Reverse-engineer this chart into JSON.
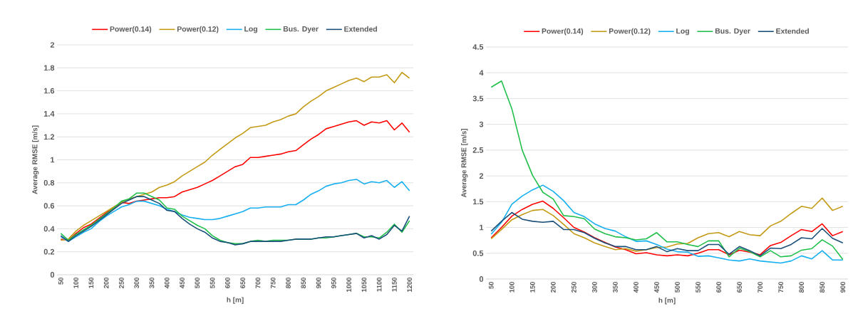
{
  "chart_data": [
    {
      "type": "line",
      "xlabel": "h [m]",
      "ylabel": "Average RMSE [m/s]",
      "x": [
        50,
        75,
        100,
        125,
        150,
        175,
        200,
        225,
        250,
        275,
        300,
        325,
        350,
        375,
        400,
        425,
        450,
        475,
        500,
        525,
        550,
        575,
        600,
        625,
        650,
        675,
        700,
        725,
        750,
        775,
        800,
        825,
        850,
        875,
        900,
        925,
        950,
        975,
        1000,
        1025,
        1050,
        1075,
        1100,
        1125,
        1150,
        1175,
        1200
      ],
      "xlim": [
        37.5,
        1212.5
      ],
      "xticks": [
        50,
        100,
        150,
        200,
        250,
        300,
        350,
        400,
        450,
        500,
        550,
        600,
        650,
        700,
        750,
        800,
        850,
        900,
        950,
        1000,
        1050,
        1100,
        1150,
        1200
      ],
      "ylim": [
        0,
        2
      ],
      "yticks": [
        0,
        0.2,
        0.4,
        0.6,
        0.8,
        1,
        1.2,
        1.4,
        1.6,
        1.8,
        2
      ],
      "grid": "y",
      "legend": "top",
      "series": [
        {
          "name": "Power(0.14)",
          "color": "#ff0000",
          "values": [
            0.31,
            0.3,
            0.36,
            0.41,
            0.44,
            0.49,
            0.54,
            0.58,
            0.63,
            0.62,
            0.64,
            0.65,
            0.66,
            0.67,
            0.67,
            0.68,
            0.72,
            0.74,
            0.76,
            0.79,
            0.82,
            0.86,
            0.9,
            0.94,
            0.96,
            1.02,
            1.02,
            1.03,
            1.04,
            1.05,
            1.07,
            1.08,
            1.13,
            1.18,
            1.22,
            1.27,
            1.29,
            1.31,
            1.33,
            1.34,
            1.3,
            1.33,
            1.32,
            1.34,
            1.26,
            1.32,
            1.24
          ]
        },
        {
          "name": "Power(0.12)",
          "color": "#c49a14",
          "values": [
            0.3,
            0.31,
            0.38,
            0.43,
            0.47,
            0.51,
            0.55,
            0.59,
            0.63,
            0.66,
            0.68,
            0.7,
            0.72,
            0.76,
            0.78,
            0.81,
            0.86,
            0.9,
            0.94,
            0.98,
            1.04,
            1.09,
            1.14,
            1.19,
            1.23,
            1.28,
            1.29,
            1.3,
            1.33,
            1.35,
            1.38,
            1.4,
            1.46,
            1.51,
            1.55,
            1.6,
            1.63,
            1.66,
            1.69,
            1.71,
            1.68,
            1.72,
            1.72,
            1.74,
            1.67,
            1.76,
            1.71
          ]
        },
        {
          "name": "Log",
          "color": "#16b0f0",
          "values": [
            0.33,
            0.29,
            0.33,
            0.37,
            0.4,
            0.46,
            0.51,
            0.55,
            0.59,
            0.61,
            0.64,
            0.64,
            0.62,
            0.6,
            0.57,
            0.55,
            0.52,
            0.5,
            0.49,
            0.48,
            0.48,
            0.49,
            0.51,
            0.53,
            0.55,
            0.58,
            0.58,
            0.59,
            0.59,
            0.59,
            0.61,
            0.61,
            0.65,
            0.7,
            0.73,
            0.77,
            0.79,
            0.8,
            0.82,
            0.83,
            0.79,
            0.81,
            0.8,
            0.82,
            0.76,
            0.81,
            0.73
          ]
        },
        {
          "name": "Bus. Dyer",
          "color": "#1fbf4a",
          "values": [
            0.36,
            0.3,
            0.35,
            0.39,
            0.43,
            0.48,
            0.53,
            0.58,
            0.64,
            0.66,
            0.71,
            0.71,
            0.68,
            0.65,
            0.58,
            0.57,
            0.51,
            0.47,
            0.43,
            0.4,
            0.34,
            0.3,
            0.28,
            0.27,
            0.27,
            0.29,
            0.3,
            0.29,
            0.3,
            0.3,
            0.3,
            0.31,
            0.31,
            0.31,
            0.32,
            0.32,
            0.33,
            0.34,
            0.35,
            0.36,
            0.33,
            0.33,
            0.32,
            0.37,
            0.44,
            0.37,
            0.47
          ]
        },
        {
          "name": "Extended",
          "color": "#1a4f7a",
          "values": [
            0.34,
            0.29,
            0.34,
            0.38,
            0.42,
            0.47,
            0.52,
            0.57,
            0.62,
            0.65,
            0.68,
            0.68,
            0.65,
            0.62,
            0.56,
            0.55,
            0.49,
            0.44,
            0.4,
            0.37,
            0.32,
            0.29,
            0.28,
            0.26,
            0.27,
            0.29,
            0.29,
            0.29,
            0.29,
            0.29,
            0.3,
            0.31,
            0.31,
            0.31,
            0.32,
            0.33,
            0.33,
            0.34,
            0.35,
            0.36,
            0.32,
            0.34,
            0.31,
            0.35,
            0.43,
            0.38,
            0.51
          ]
        }
      ]
    },
    {
      "type": "line",
      "xlabel": "h [m]",
      "ylabel": "Average RMSE [m/s]",
      "x": [
        50,
        75,
        100,
        125,
        150,
        175,
        200,
        225,
        250,
        275,
        300,
        325,
        350,
        375,
        400,
        425,
        450,
        475,
        500,
        525,
        550,
        575,
        600,
        625,
        650,
        675,
        700,
        725,
        750,
        775,
        800,
        825,
        850,
        875,
        900
      ],
      "xlim": [
        37.5,
        912.5
      ],
      "xticks": [
        50,
        100,
        150,
        200,
        250,
        300,
        350,
        400,
        450,
        500,
        550,
        600,
        650,
        700,
        750,
        800,
        850,
        900
      ],
      "ylim": [
        0,
        4.5
      ],
      "yticks": [
        0,
        0.5,
        1,
        1.5,
        2,
        2.5,
        3,
        3.5,
        4,
        4.5
      ],
      "grid": "y",
      "legend": "top",
      "series": [
        {
          "name": "Power(0.14)",
          "color": "#ff0000",
          "values": [
            0.8,
            1.0,
            1.22,
            1.35,
            1.45,
            1.51,
            1.37,
            1.19,
            1.0,
            0.91,
            0.8,
            0.71,
            0.62,
            0.57,
            0.49,
            0.51,
            0.47,
            0.45,
            0.47,
            0.45,
            0.5,
            0.57,
            0.57,
            0.47,
            0.56,
            0.52,
            0.47,
            0.65,
            0.71,
            0.84,
            0.96,
            0.92,
            1.07,
            0.84,
            0.92
          ]
        },
        {
          "name": "Power(0.12)",
          "color": "#c49a14",
          "values": [
            0.78,
            0.96,
            1.15,
            1.25,
            1.33,
            1.35,
            1.23,
            1.06,
            0.88,
            0.8,
            0.7,
            0.63,
            0.57,
            0.59,
            0.54,
            0.57,
            0.61,
            0.62,
            0.68,
            0.69,
            0.8,
            0.88,
            0.9,
            0.82,
            0.92,
            0.86,
            0.84,
            1.03,
            1.12,
            1.27,
            1.41,
            1.37,
            1.57,
            1.33,
            1.41
          ]
        },
        {
          "name": "Log",
          "color": "#16b0f0",
          "values": [
            0.87,
            1.1,
            1.45,
            1.61,
            1.73,
            1.82,
            1.7,
            1.52,
            1.29,
            1.21,
            1.07,
            0.98,
            0.93,
            0.82,
            0.73,
            0.74,
            0.67,
            0.58,
            0.53,
            0.52,
            0.44,
            0.45,
            0.41,
            0.37,
            0.35,
            0.39,
            0.35,
            0.33,
            0.31,
            0.35,
            0.45,
            0.39,
            0.55,
            0.37,
            0.37
          ]
        },
        {
          "name": "Bus. Dyer",
          "color": "#1fbf4a",
          "values": [
            3.72,
            3.84,
            3.3,
            2.5,
            2.01,
            1.68,
            1.55,
            1.23,
            1.21,
            1.17,
            0.97,
            0.88,
            0.82,
            0.8,
            0.76,
            0.78,
            0.9,
            0.72,
            0.72,
            0.67,
            0.63,
            0.74,
            0.74,
            0.43,
            0.6,
            0.53,
            0.43,
            0.55,
            0.43,
            0.45,
            0.56,
            0.59,
            0.76,
            0.64,
            0.38
          ]
        },
        {
          "name": "Extended",
          "color": "#1a4f7a",
          "values": [
            0.93,
            1.12,
            1.29,
            1.16,
            1.12,
            1.1,
            1.12,
            0.96,
            0.96,
            0.9,
            0.79,
            0.7,
            0.63,
            0.63,
            0.57,
            0.57,
            0.63,
            0.53,
            0.59,
            0.55,
            0.55,
            0.67,
            0.67,
            0.48,
            0.63,
            0.55,
            0.45,
            0.6,
            0.59,
            0.67,
            0.8,
            0.78,
            0.98,
            0.79,
            0.7
          ]
        }
      ]
    }
  ]
}
